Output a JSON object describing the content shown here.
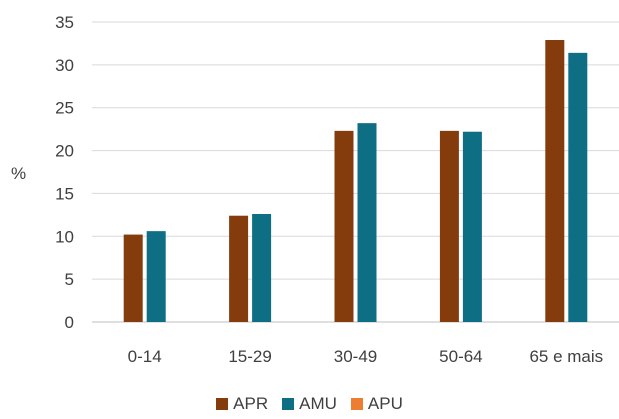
{
  "chart_data": {
    "type": "bar",
    "categories": [
      "0-14",
      "15-29",
      "30-49",
      "50-64",
      "65 e mais"
    ],
    "series": [
      {
        "name": "APR",
        "color": "#843C0C",
        "values": [
          10.2,
          12.4,
          22.3,
          22.3,
          32.9
        ]
      },
      {
        "name": "AMU",
        "color": "#0E6E84",
        "values": [
          10.6,
          12.6,
          23.2,
          22.2,
          31.4
        ]
      },
      {
        "name": "APU",
        "color": "#ED7D31",
        "values": [
          0,
          0,
          0,
          0,
          0
        ]
      }
    ],
    "ylabel": "%",
    "ylim": [
      0,
      35
    ],
    "yticks": [
      0,
      5,
      10,
      15,
      20,
      25,
      30,
      35
    ],
    "grid": true,
    "legend": "bottom"
  }
}
